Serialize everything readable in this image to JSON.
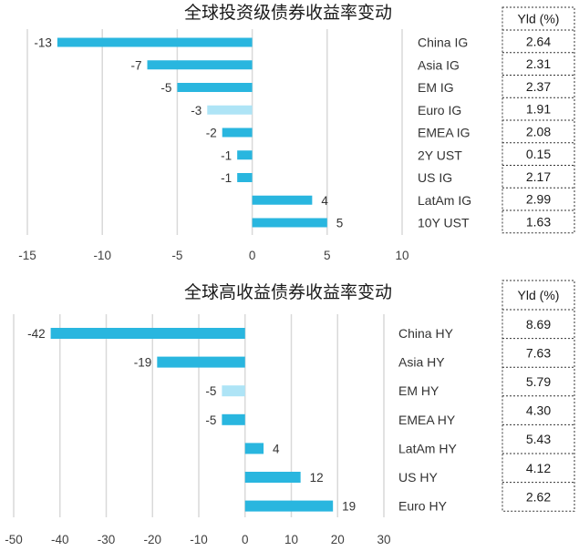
{
  "chart_data": [
    {
      "type": "bar",
      "orientation": "horizontal",
      "title": "全球投资级债券收益率变动",
      "categories": [
        "China IG",
        "Asia IG",
        "EM IG",
        "Euro IG",
        "EMEA IG",
        "2Y UST",
        "US IG",
        "LatAm IG",
        "10Y UST"
      ],
      "values": [
        -13,
        -7,
        -5,
        -3,
        -2,
        -1,
        -1,
        4,
        5
      ],
      "data_labels": [
        "-13",
        "-7",
        "-5",
        "-3",
        "-2",
        "-1",
        "-1",
        "4",
        "5"
      ],
      "xlim": [
        -15,
        10
      ],
      "x_ticks": [
        -15,
        -10,
        -5,
        0,
        5,
        10
      ],
      "x_tick_labels": [
        "-15",
        "-10",
        "-5",
        "0",
        "5",
        "10"
      ],
      "grid": "vertical",
      "colors": {
        "bar": "#29b6df",
        "highlight": "#aee4f6",
        "grid": "#d9d9d9"
      },
      "highlight_category": "Euro IG",
      "yield_table": {
        "header": "Yld (%)",
        "values": [
          "2.64",
          "2.31",
          "2.37",
          "1.91",
          "2.08",
          "0.15",
          "2.17",
          "2.99",
          "1.63"
        ]
      }
    },
    {
      "type": "bar",
      "orientation": "horizontal",
      "title": "全球高收益债券收益率变动",
      "categories": [
        "China HY",
        "Asia HY",
        "EM HY",
        "EMEA HY",
        "LatAm HY",
        "US HY",
        "Euro HY"
      ],
      "values": [
        -42,
        -19,
        -5,
        -5,
        4,
        12,
        19
      ],
      "data_labels": [
        "-42",
        "-19",
        "-5",
        "-5",
        "4",
        "12",
        "19"
      ],
      "xlim": [
        -50,
        30
      ],
      "x_ticks": [
        -50,
        -40,
        -30,
        -20,
        -10,
        0,
        10,
        20,
        30
      ],
      "x_tick_labels": [
        "-50",
        "-40",
        "-30",
        "-20",
        "-10",
        "0",
        "10",
        "20",
        "30"
      ],
      "grid": "vertical",
      "colors": {
        "bar": "#29b6df",
        "highlight": "#aee4f6",
        "grid": "#d9d9d9"
      },
      "highlight_category": "EM HY",
      "yield_table": {
        "header": "Yld (%)",
        "values": [
          "8.69",
          "7.63",
          "5.79",
          "4.30",
          "5.43",
          "4.12",
          "2.62"
        ]
      }
    }
  ]
}
